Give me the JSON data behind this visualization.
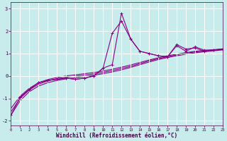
{
  "background_color": "#c8ecec",
  "line_color": "#880088",
  "grid_color": "#ffffff",
  "xlabel": "Windchill (Refroidissement éolien,°C)",
  "xlim": [
    0,
    23
  ],
  "ylim": [
    -2.2,
    3.3
  ],
  "yticks": [
    -2,
    -1,
    0,
    1,
    2,
    3
  ],
  "xticks": [
    0,
    1,
    2,
    3,
    4,
    5,
    6,
    7,
    8,
    9,
    10,
    11,
    12,
    13,
    14,
    15,
    16,
    17,
    18,
    19,
    20,
    21,
    22,
    23
  ],
  "series1_x": [
    1,
    2,
    3,
    4,
    5,
    6,
    7,
    8,
    9,
    10,
    11,
    12,
    13,
    14,
    15,
    16,
    17,
    18,
    19,
    20,
    21,
    22,
    23
  ],
  "series1_y": [
    -0.95,
    -0.6,
    -0.3,
    -0.2,
    -0.15,
    -0.1,
    -0.15,
    -0.1,
    0.0,
    0.35,
    1.9,
    2.45,
    1.65,
    1.1,
    1.0,
    0.9,
    0.85,
    1.4,
    1.2,
    1.25,
    1.1,
    1.15,
    1.2
  ],
  "series2_x": [
    0,
    1,
    2,
    3,
    4,
    5,
    6,
    7,
    8,
    9,
    10,
    11,
    12,
    13,
    14,
    15,
    16,
    17,
    18,
    19,
    20,
    21,
    22,
    23
  ],
  "series2_y": [
    -1.75,
    -0.95,
    -0.6,
    -0.3,
    -0.2,
    -0.15,
    -0.1,
    -0.15,
    -0.1,
    0.0,
    0.35,
    0.5,
    2.8,
    1.65,
    1.1,
    1.0,
    0.9,
    0.85,
    1.35,
    1.1,
    1.3,
    1.15,
    1.15,
    1.2
  ],
  "smooth1_x": [
    0,
    1,
    2,
    3,
    4,
    5,
    6,
    7,
    8,
    9,
    10,
    11,
    12,
    13,
    14,
    15,
    16,
    17,
    18,
    19,
    20,
    21,
    22,
    23
  ],
  "smooth1_y": [
    -1.75,
    -1.1,
    -0.7,
    -0.45,
    -0.3,
    -0.2,
    -0.13,
    -0.08,
    -0.03,
    0.03,
    0.1,
    0.18,
    0.27,
    0.38,
    0.5,
    0.62,
    0.73,
    0.82,
    0.9,
    0.97,
    1.03,
    1.08,
    1.12,
    1.16
  ],
  "smooth2_y": [
    -1.6,
    -1.0,
    -0.62,
    -0.37,
    -0.22,
    -0.12,
    -0.06,
    -0.01,
    0.04,
    0.09,
    0.16,
    0.24,
    0.33,
    0.43,
    0.55,
    0.67,
    0.77,
    0.86,
    0.94,
    1.01,
    1.07,
    1.11,
    1.15,
    1.19
  ],
  "smooth3_y": [
    -1.45,
    -0.9,
    -0.55,
    -0.3,
    -0.16,
    -0.07,
    -0.0,
    0.05,
    0.1,
    0.15,
    0.22,
    0.3,
    0.39,
    0.49,
    0.6,
    0.71,
    0.81,
    0.9,
    0.97,
    1.04,
    1.1,
    1.14,
    1.17,
    1.21
  ]
}
